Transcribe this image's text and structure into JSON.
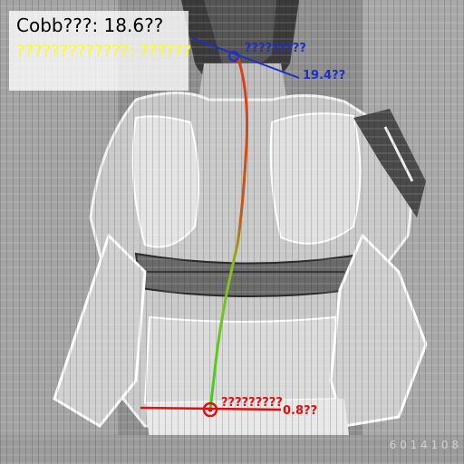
{
  "overlay": {
    "cobb_text": "Cobb???: 18.6??",
    "status_text": "?????????????: ??????",
    "upper_marker_label": "?????????",
    "upper_angle_label": "19.4??",
    "lower_marker_label": "?????????",
    "lower_angle_label": "0.8??",
    "timestamp": "6 0 1 4 1 0 8"
  },
  "colors": {
    "cobb_text": "#000000",
    "status_text": "#ffff00",
    "upper_marker": "#1e2fc4",
    "lower_marker": "#e01010",
    "spine_top": "#e03a1a",
    "spine_bottom": "#3ad01a"
  }
}
